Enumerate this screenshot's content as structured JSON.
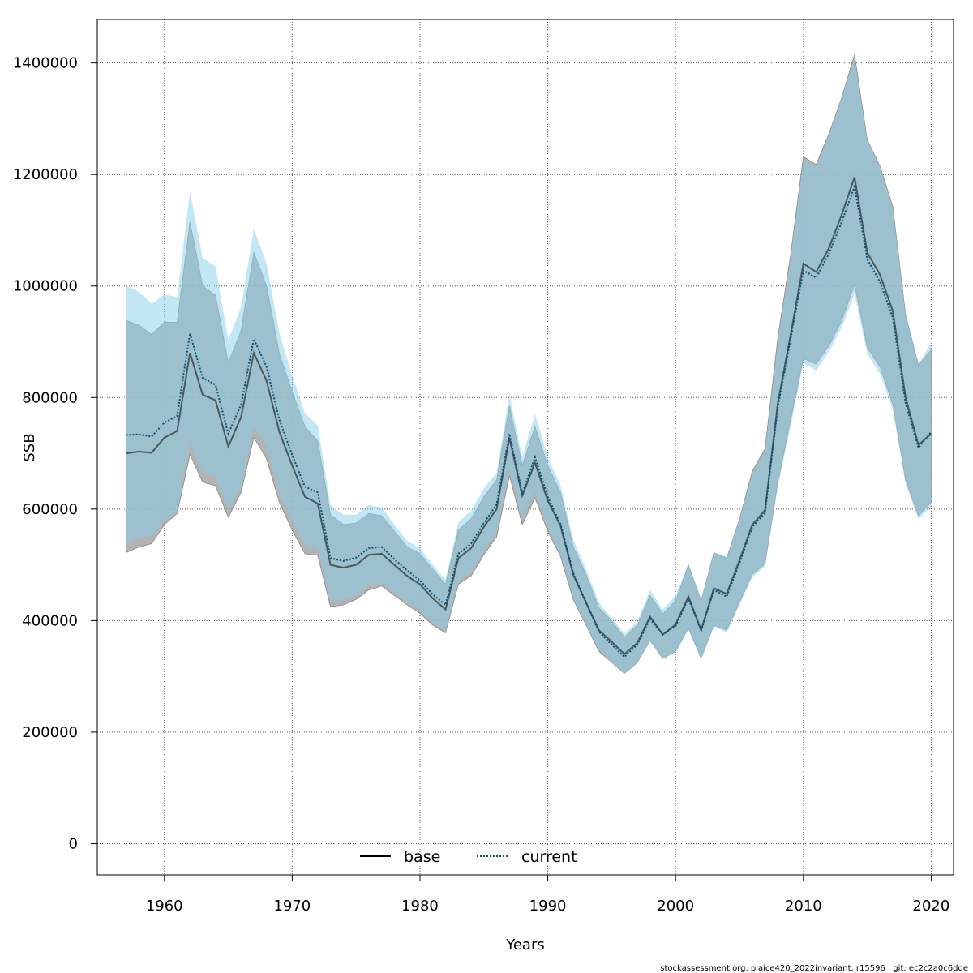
{
  "chart_data": {
    "type": "area",
    "xlabel": "Years",
    "ylabel": "SSB",
    "xlim": [
      1954.75,
      2021.75
    ],
    "ylim": [
      -56000,
      1478000
    ],
    "x_ticks": [
      1960,
      1970,
      1980,
      1990,
      2000,
      2010,
      2020
    ],
    "y_ticks": [
      0,
      200000,
      400000,
      600000,
      800000,
      1000000,
      1200000,
      1400000
    ],
    "x_tick_labels": [
      "1960",
      "1970",
      "1980",
      "1990",
      "2000",
      "2010",
      "2020"
    ],
    "y_tick_labels": [
      "0",
      "200000",
      "400000",
      "600000",
      "800000",
      "1000000",
      "1200000",
      "1400000"
    ],
    "grid": true,
    "legend_position": "bottom-center",
    "x": [
      1957,
      1958,
      1959,
      1960,
      1961,
      1962,
      1963,
      1964,
      1965,
      1966,
      1967,
      1968,
      1969,
      1970,
      1971,
      1972,
      1973,
      1974,
      1975,
      1976,
      1977,
      1978,
      1979,
      1980,
      1981,
      1982,
      1983,
      1984,
      1985,
      1986,
      1987,
      1988,
      1989,
      1990,
      1991,
      1992,
      1993,
      1994,
      1995,
      1996,
      1997,
      1998,
      1999,
      2000,
      2001,
      2002,
      2003,
      2004,
      2005,
      2006,
      2007,
      2008,
      2009,
      2010,
      2011,
      2012,
      2013,
      2014,
      2015,
      2016,
      2017,
      2018,
      2019,
      2020
    ],
    "series": [
      {
        "name": "base",
        "color": "#000000",
        "band_color": "#a0a0a0",
        "line_style": "solid",
        "values": [
          700000,
          703000,
          701000,
          728000,
          740000,
          880000,
          805000,
          795000,
          712000,
          765000,
          880000,
          830000,
          738000,
          678000,
          622000,
          610000,
          500000,
          495000,
          500000,
          518000,
          520000,
          500000,
          480000,
          465000,
          440000,
          420000,
          512000,
          530000,
          568000,
          600000,
          728000,
          624000,
          683000,
          615000,
          570000,
          482000,
          432000,
          383000,
          362000,
          340000,
          360000,
          407000,
          375000,
          393000,
          443000,
          383000,
          458000,
          448000,
          508000,
          572000,
          598000,
          790000,
          912000,
          1040000,
          1025000,
          1068000,
          1128000,
          1195000,
          1060000,
          1020000,
          955000,
          800000,
          715000,
          735000
        ],
        "upper": [
          938000,
          930000,
          913000,
          935000,
          935000,
          1115000,
          1000000,
          983000,
          862000,
          920000,
          1060000,
          1000000,
          878000,
          810000,
          748000,
          722000,
          590000,
          572000,
          575000,
          592000,
          588000,
          560000,
          532000,
          520000,
          492000,
          465000,
          562000,
          582000,
          622000,
          652000,
          785000,
          678000,
          748000,
          678000,
          630000,
          532000,
          482000,
          423000,
          400000,
          370000,
          392000,
          445000,
          412000,
          435000,
          500000,
          435000,
          522000,
          512000,
          582000,
          668000,
          708000,
          908000,
          1055000,
          1232000,
          1218000,
          1273000,
          1338000,
          1415000,
          1262000,
          1215000,
          1142000,
          948000,
          858000,
          885000
        ],
        "lower": [
          522000,
          532000,
          538000,
          572000,
          592000,
          698000,
          648000,
          642000,
          585000,
          630000,
          728000,
          690000,
          612000,
          562000,
          520000,
          517000,
          425000,
          428000,
          438000,
          455000,
          462000,
          445000,
          428000,
          413000,
          392000,
          378000,
          465000,
          480000,
          518000,
          550000,
          660000,
          572000,
          620000,
          560000,
          515000,
          437000,
          392000,
          345000,
          325000,
          305000,
          325000,
          365000,
          332000,
          345000,
          387000,
          333000,
          392000,
          383000,
          433000,
          483000,
          502000,
          648000,
          760000,
          870000,
          860000,
          893000,
          938000,
          1003000,
          890000,
          855000,
          788000,
          652000,
          588000,
          612000
        ]
      },
      {
        "name": "current",
        "color": "#0b4f74",
        "band_color": "#87ceeb",
        "line_style": "dotted",
        "values": [
          733000,
          734000,
          730000,
          755000,
          767000,
          915000,
          835000,
          823000,
          735000,
          787000,
          905000,
          855000,
          760000,
          697000,
          640000,
          630000,
          512000,
          507000,
          513000,
          530000,
          532000,
          510000,
          490000,
          472000,
          447000,
          428000,
          520000,
          538000,
          575000,
          608000,
          735000,
          628000,
          693000,
          622000,
          573000,
          485000,
          432000,
          380000,
          357000,
          335000,
          357000,
          403000,
          375000,
          390000,
          440000,
          382000,
          455000,
          443000,
          503000,
          568000,
          593000,
          783000,
          905000,
          1028000,
          1015000,
          1058000,
          1115000,
          1178000,
          1048000,
          1007000,
          943000,
          790000,
          710000,
          738000
        ],
        "upper": [
          1000000,
          990000,
          968000,
          985000,
          980000,
          1170000,
          1050000,
          1035000,
          903000,
          962000,
          1103000,
          1040000,
          915000,
          840000,
          772000,
          750000,
          607000,
          590000,
          590000,
          607000,
          603000,
          572000,
          543000,
          530000,
          500000,
          473000,
          577000,
          597000,
          637000,
          665000,
          805000,
          693000,
          770000,
          693000,
          643000,
          545000,
          492000,
          432000,
          405000,
          377000,
          398000,
          455000,
          420000,
          445000,
          500000,
          440000,
          522000,
          515000,
          582000,
          665000,
          703000,
          902000,
          1050000,
          1225000,
          1213000,
          1270000,
          1338000,
          1410000,
          1262000,
          1215000,
          1140000,
          950000,
          860000,
          898000
        ],
        "lower": [
          538000,
          548000,
          552000,
          580000,
          594000,
          720000,
          665000,
          658000,
          598000,
          640000,
          748000,
          712000,
          628000,
          578000,
          535000,
          530000,
          435000,
          437000,
          445000,
          462000,
          467000,
          450000,
          433000,
          418000,
          397000,
          382000,
          470000,
          487000,
          525000,
          556000,
          672000,
          580000,
          632000,
          565000,
          519000,
          440000,
          393000,
          347000,
          324000,
          304000,
          323000,
          362000,
          332000,
          343000,
          383000,
          330000,
          390000,
          378000,
          428000,
          478000,
          497000,
          640000,
          748000,
          862000,
          848000,
          882000,
          925000,
          985000,
          878000,
          842000,
          778000,
          645000,
          582000,
          605000
        ]
      }
    ],
    "footer_text": "stockassessment.org, plaice420_2022invariant, r15596 , git: ec2c2a0c6dde"
  }
}
